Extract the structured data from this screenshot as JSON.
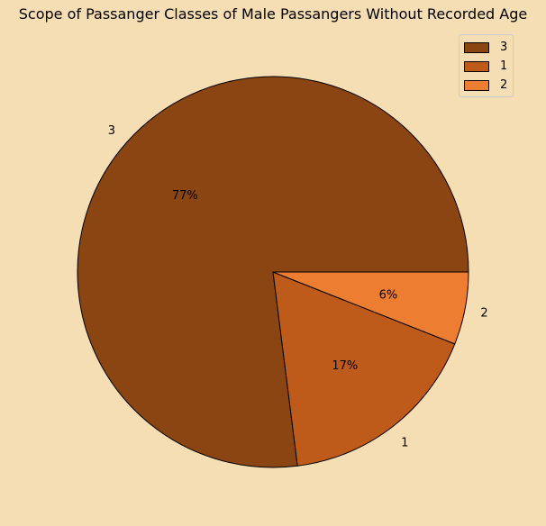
{
  "chart_data": {
    "type": "pie",
    "title": "Scope of Passanger Classes of Male Passangers Without Recorded Age",
    "categories": [
      "3",
      "1",
      "2"
    ],
    "values": [
      77,
      17,
      6
    ],
    "value_labels": [
      "77%",
      "17%",
      "6%"
    ],
    "colors": [
      "#8B4513",
      "#BF5B1A",
      "#ED7D31"
    ],
    "legend": {
      "placement": "top-right",
      "entries": [
        "3",
        "1",
        "2"
      ]
    },
    "edge_color": "#000000",
    "background": "#F5DEB3"
  }
}
